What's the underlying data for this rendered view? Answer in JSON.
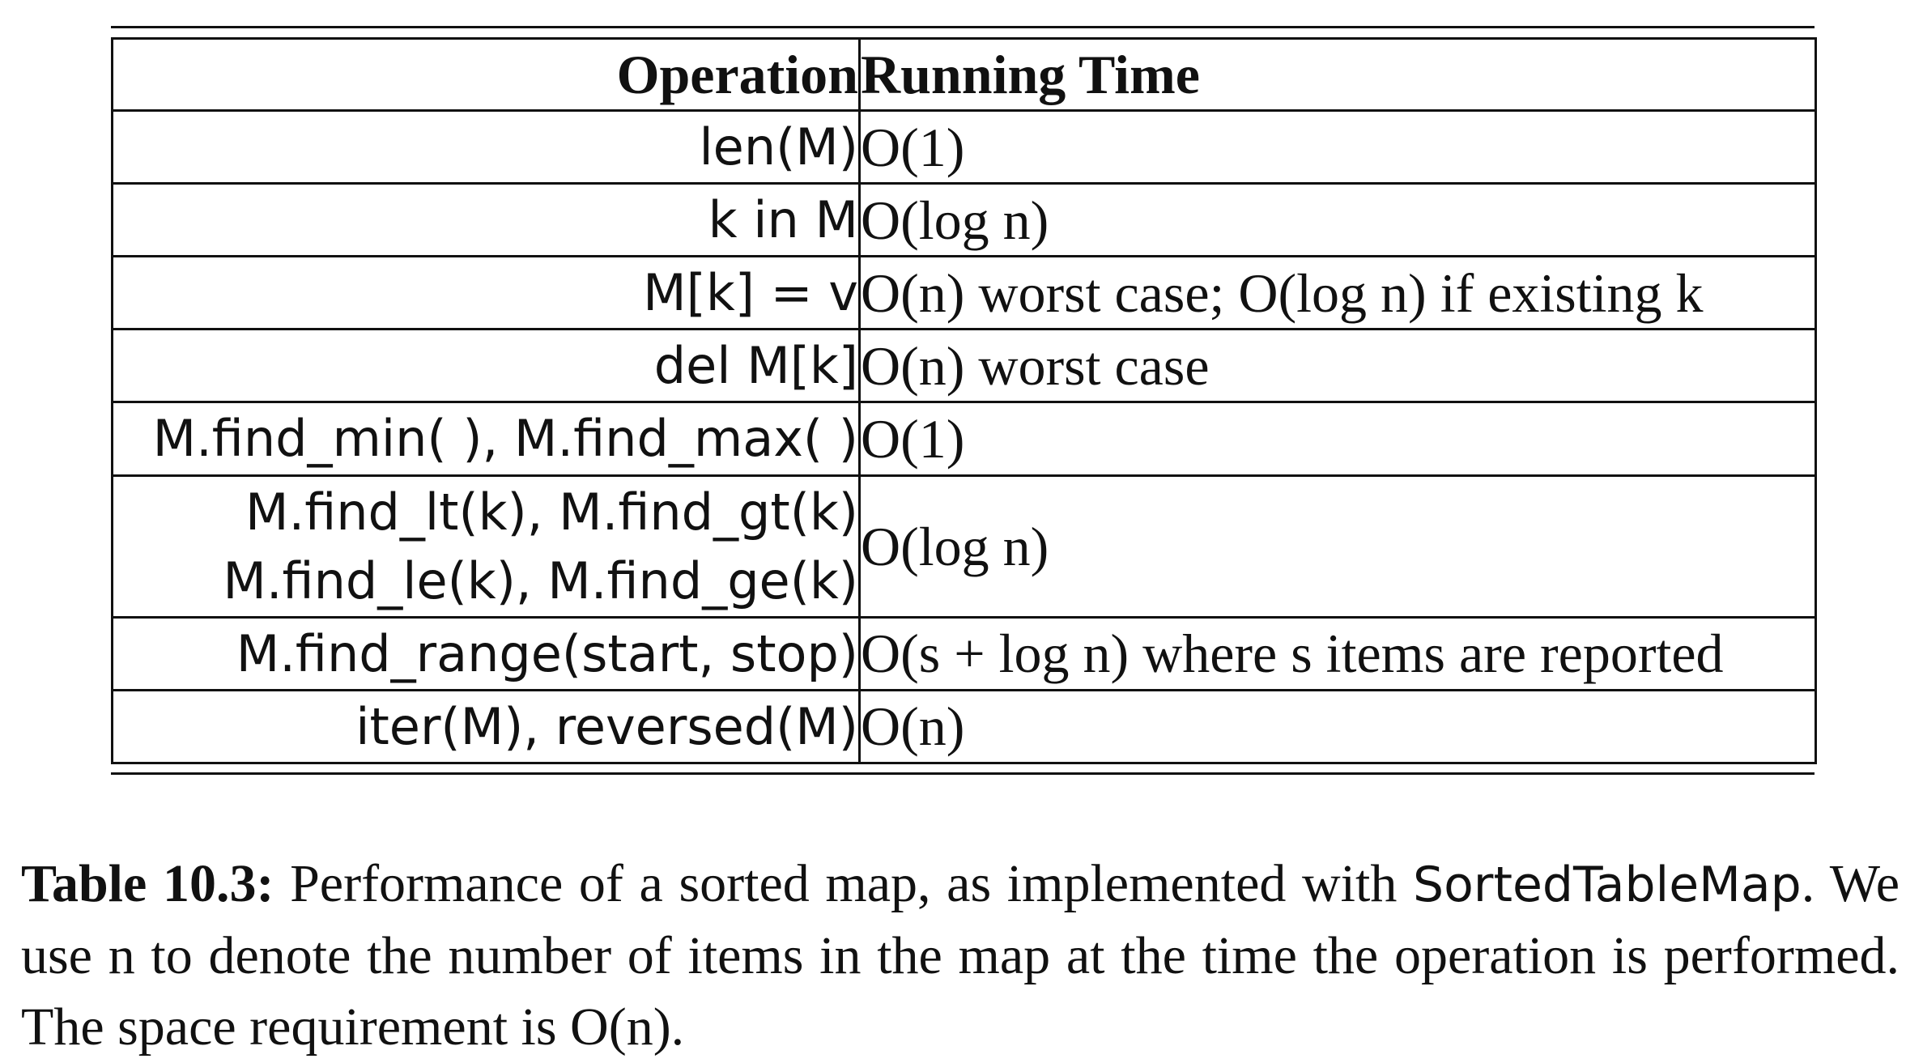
{
  "table": {
    "header": {
      "operation": "Operation",
      "running_time": "Running Time"
    },
    "rows": [
      {
        "operation": [
          "len(M)"
        ],
        "running_time": "O(1)"
      },
      {
        "operation": [
          "k in M"
        ],
        "running_time": "O(log n)"
      },
      {
        "operation": [
          "M[k] = v"
        ],
        "running_time": "O(n) worst case; O(log n) if existing k"
      },
      {
        "operation": [
          "del M[k]"
        ],
        "running_time": "O(n) worst case"
      },
      {
        "operation": [
          "M.find_min( ), M.find_max( )"
        ],
        "running_time": "O(1)"
      },
      {
        "operation": [
          "M.find_lt(k), M.find_gt(k)",
          "M.find_le(k), M.find_ge(k)"
        ],
        "running_time": "O(log n)"
      },
      {
        "operation": [
          "M.find_range(start, stop)"
        ],
        "running_time": "O(s + log n) where s items are reported"
      },
      {
        "operation": [
          "iter(M), reversed(M)"
        ],
        "running_time": "O(n)"
      }
    ]
  },
  "caption": {
    "label": "Table 10.3:",
    "text_before_name": "Performance of a sorted map, as implemented with",
    "class_name": "SortedTableMap",
    "text_after_name": ". We use n to denote the number of items in the map at the time the operation is performed. The space requirement is O(n)."
  }
}
